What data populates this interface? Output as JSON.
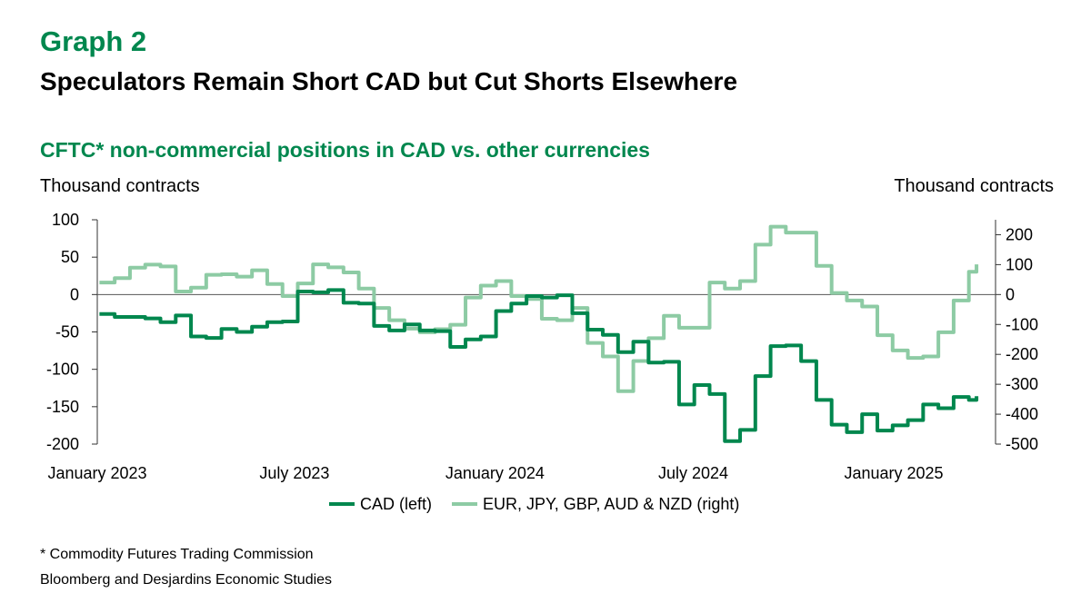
{
  "header": {
    "graph_label": "Graph 2",
    "title": "Speculators Remain Short CAD but Cut Shorts Elsewhere"
  },
  "chart_data": {
    "type": "line",
    "title": "CFTC* non-commercial positions in CAD vs. other currencies",
    "ylabel_left": "Thousand contracts",
    "ylabel_right": "Thousand contracts",
    "ylim_left": [
      -200,
      100
    ],
    "ylim_right": [
      -500,
      250
    ],
    "yticks_left": [
      100,
      50,
      0,
      -50,
      -100,
      -150,
      -200
    ],
    "yticks_right": [
      200,
      100,
      0,
      -100,
      -200,
      -300,
      -400,
      -500
    ],
    "xticks": [
      {
        "date": "2023-01-01",
        "label": "January 2023"
      },
      {
        "date": "2023-07-01",
        "label": "July 2023"
      },
      {
        "date": "2024-01-01",
        "label": "January 2024"
      },
      {
        "date": "2024-07-01",
        "label": "July 2024"
      },
      {
        "date": "2025-01-01",
        "label": "January 2025"
      }
    ],
    "grid": false,
    "legend": "bottom",
    "x": [
      "2023-01-03",
      "2023-01-17",
      "2023-01-31",
      "2023-02-14",
      "2023-02-28",
      "2023-03-14",
      "2023-03-28",
      "2023-04-11",
      "2023-04-25",
      "2023-05-09",
      "2023-05-23",
      "2023-06-06",
      "2023-06-20",
      "2023-07-04",
      "2023-07-18",
      "2023-08-01",
      "2023-08-15",
      "2023-08-29",
      "2023-09-12",
      "2023-09-26",
      "2023-10-10",
      "2023-10-24",
      "2023-11-07",
      "2023-11-21",
      "2023-12-05",
      "2023-12-19",
      "2024-01-02",
      "2024-01-16",
      "2024-01-30",
      "2024-02-13",
      "2024-02-27",
      "2024-03-12",
      "2024-03-26",
      "2024-04-09",
      "2024-04-23",
      "2024-05-07",
      "2024-05-21",
      "2024-06-04",
      "2024-06-18",
      "2024-07-02",
      "2024-07-16",
      "2024-07-30",
      "2024-08-13",
      "2024-08-27",
      "2024-09-10",
      "2024-09-24",
      "2024-10-08",
      "2024-10-22",
      "2024-11-05",
      "2024-11-19",
      "2024-12-03",
      "2024-12-17",
      "2024-12-31",
      "2025-01-14",
      "2025-01-28",
      "2025-02-11",
      "2025-02-25",
      "2025-03-11",
      "2025-03-18"
    ],
    "series": [
      {
        "name": "CAD (left)",
        "axis": "left",
        "color": "#00874E",
        "values": [
          -26,
          -30,
          -30,
          -32,
          -37,
          -28,
          -56,
          -58,
          -46,
          -50,
          -43,
          -37,
          -36,
          4,
          3,
          6,
          -11,
          -12,
          -42,
          -48,
          -40,
          -48,
          -49,
          -70,
          -60,
          -56,
          -22,
          -12,
          -2,
          -4,
          -1,
          -25,
          -47,
          -54,
          -77,
          -63,
          -91,
          -90,
          -147,
          -121,
          -133,
          -196,
          -181,
          -109,
          -69,
          -68,
          -89,
          -141,
          -174,
          -184,
          -160,
          -182,
          -175,
          -168,
          -147,
          -152,
          -137,
          -141,
          -136
        ]
      },
      {
        "name": "EUR, JPY, GBP, AUD & NZD (right)",
        "axis": "right",
        "color": "#8DCBA4",
        "values": [
          40,
          55,
          90,
          100,
          94,
          10,
          23,
          66,
          68,
          60,
          81,
          35,
          -5,
          37,
          101,
          91,
          74,
          20,
          -45,
          -86,
          -114,
          -126,
          -116,
          -101,
          -10,
          30,
          45,
          -5,
          -15,
          -81,
          -86,
          -45,
          -162,
          -207,
          -323,
          -222,
          -146,
          -71,
          -111,
          -111,
          40,
          20,
          45,
          167,
          227,
          207,
          207,
          96,
          5,
          -20,
          -40,
          -136,
          -187,
          -212,
          -207,
          -126,
          -20,
          76,
          101
        ]
      }
    ]
  },
  "footnotes": {
    "asterisk": "* Commodity Futures Trading Commission",
    "source": "Bloomberg and Desjardins Economic Studies"
  }
}
